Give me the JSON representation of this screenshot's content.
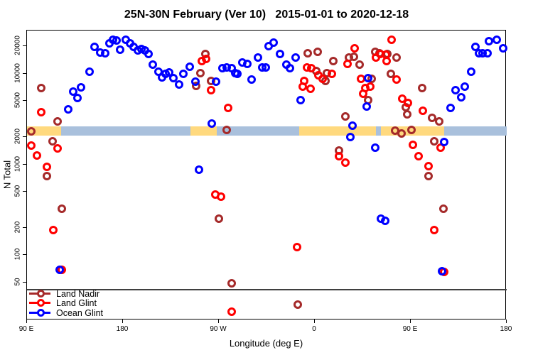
{
  "title": "25N-30N February (Ver 10)   2015-01-01 to 2020-12-18",
  "chart_data": {
    "type": "scatter",
    "title": "25N-30N February (Ver 10)   2015-01-01 to 2020-12-18",
    "xlabel": "Longitude (deg E)",
    "ylabel": "N Total",
    "x_axis": {
      "wraps": true,
      "span_deg": 450,
      "start_longitude": "90 E",
      "tick_positions_deg": [
        0,
        90,
        180,
        270,
        360,
        450
      ],
      "tick_labels": [
        "90 E",
        "180",
        "90 W",
        "0",
        "90 E",
        "180"
      ],
      "grid": false
    },
    "y_axis": {
      "scale": "log",
      "range": [
        19.2,
        29850
      ],
      "tick_values": [
        50,
        100,
        200,
        500,
        1000,
        2000,
        5000,
        10000,
        20000
      ],
      "tick_labels": [
        "50",
        "100",
        "200",
        "500",
        "1000",
        "2000",
        "5000",
        "10000",
        "20000"
      ],
      "grid": false
    },
    "reference_line": {
      "n": 42,
      "color": "#3f3f3f"
    },
    "map_band": {
      "description": "land/ocean world strip at 25N-30N latitude",
      "n_top": 2620,
      "n_bottom": 2070,
      "ocean_color": "#a9c0dc",
      "land_color": "#ffd97e",
      "land_segments_deg": [
        [
          0,
          32
        ],
        [
          153.3,
          178
        ],
        [
          255.3,
          327.3
        ],
        [
          332,
          391.3
        ]
      ]
    },
    "legend": {
      "position": "bottom-left",
      "entries": [
        "Land Nadir",
        "Land Glint",
        "Ocean Glint"
      ]
    },
    "series": [
      {
        "name": "Land Nadir",
        "color": "#a52a2a",
        "points": [
          [
            13.3,
            6930
          ],
          [
            28.7,
            2970
          ],
          [
            4,
            2310
          ],
          [
            24,
            1800
          ],
          [
            18.7,
            743
          ],
          [
            32.7,
            324
          ],
          [
            167.3,
            16400
          ],
          [
            162.7,
            10200
          ],
          [
            158.7,
            7300
          ],
          [
            172.7,
            8330
          ],
          [
            187.3,
            2400
          ],
          [
            180,
            252
          ],
          [
            192,
            49
          ],
          [
            254,
            28.5
          ],
          [
            263.3,
            16700
          ],
          [
            272.7,
            17400
          ],
          [
            287.3,
            13800
          ],
          [
            302,
            15100
          ],
          [
            306.7,
            15400
          ],
          [
            312,
            12600
          ],
          [
            326.7,
            17400
          ],
          [
            330.7,
            16700
          ],
          [
            338,
            16400
          ],
          [
            281.3,
            10200
          ],
          [
            271.3,
            10700
          ],
          [
            280,
            8330
          ],
          [
            323.3,
            8810
          ],
          [
            320,
            5100
          ],
          [
            298.7,
            3350
          ],
          [
            341.3,
            9860
          ],
          [
            292.7,
            1420
          ],
          [
            346.7,
            15100
          ],
          [
            370.7,
            6900
          ],
          [
            355.3,
            4300
          ],
          [
            356.7,
            3580
          ],
          [
            386.7,
            2970
          ],
          [
            380,
            3240
          ],
          [
            345.3,
            2360
          ],
          [
            351.3,
            2190
          ],
          [
            360.7,
            2400
          ],
          [
            382,
            1800
          ],
          [
            376.7,
            743
          ],
          [
            390.7,
            324
          ]
        ]
      },
      {
        "name": "Land Glint",
        "color": "#ff0000",
        "points": [
          [
            13.3,
            3760
          ],
          [
            4,
            1610
          ],
          [
            9.3,
            1250
          ],
          [
            28.7,
            1500
          ],
          [
            18.7,
            940
          ],
          [
            24.7,
            189
          ],
          [
            32.7,
            69
          ],
          [
            164,
            13800
          ],
          [
            168,
            14600
          ],
          [
            172.7,
            6570
          ],
          [
            188.7,
            4190
          ],
          [
            176.7,
            465
          ],
          [
            182,
            440
          ],
          [
            192,
            24
          ],
          [
            307.3,
            19000
          ],
          [
            300.7,
            12700
          ],
          [
            262.7,
            11600
          ],
          [
            266.7,
            11400
          ],
          [
            273.3,
            9680
          ],
          [
            277.3,
            8810
          ],
          [
            286,
            9860
          ],
          [
            260,
            8330
          ],
          [
            258.7,
            7160
          ],
          [
            266,
            6780
          ],
          [
            313.3,
            8810
          ],
          [
            317.3,
            6900
          ],
          [
            322,
            7160
          ],
          [
            315.3,
            5960
          ],
          [
            327.3,
            15100
          ],
          [
            331.3,
            16500
          ],
          [
            336.7,
            16200
          ],
          [
            337.3,
            13800
          ],
          [
            342,
            23600
          ],
          [
            292.7,
            1230
          ],
          [
            298.7,
            1050
          ],
          [
            346.7,
            8660
          ],
          [
            352,
            5280
          ],
          [
            357.3,
            4720
          ],
          [
            371.3,
            3900
          ],
          [
            362,
            1640
          ],
          [
            388,
            1530
          ],
          [
            367.3,
            1230
          ],
          [
            376.7,
            955
          ],
          [
            382,
            189
          ],
          [
            391.3,
            65
          ],
          [
            253.3,
            122
          ]
        ]
      },
      {
        "name": "Ocean Glint",
        "color": "#0000ff",
        "points": [
          [
            38.7,
            4040
          ],
          [
            43.3,
            6340
          ],
          [
            47.3,
            5400
          ],
          [
            50.7,
            7060
          ],
          [
            58.7,
            10500
          ],
          [
            63.3,
            19700
          ],
          [
            68.7,
            17100
          ],
          [
            73.3,
            16700
          ],
          [
            77.3,
            21600
          ],
          [
            80.7,
            23600
          ],
          [
            84,
            23200
          ],
          [
            87.3,
            18400
          ],
          [
            92.7,
            23600
          ],
          [
            96.7,
            21600
          ],
          [
            100,
            19700
          ],
          [
            104,
            18000
          ],
          [
            107.3,
            18700
          ],
          [
            110.7,
            18000
          ],
          [
            114,
            16400
          ],
          [
            118,
            12600
          ],
          [
            123.3,
            10500
          ],
          [
            126.7,
            9150
          ],
          [
            130,
            9860
          ],
          [
            133.3,
            10300
          ],
          [
            137.3,
            8970
          ],
          [
            142.7,
            7590
          ],
          [
            146.7,
            10000
          ],
          [
            152.7,
            11900
          ],
          [
            158,
            8150
          ],
          [
            173.3,
            2830
          ],
          [
            177.3,
            8150
          ],
          [
            183.3,
            11400
          ],
          [
            187.3,
            11600
          ],
          [
            192,
            11400
          ],
          [
            195.3,
            10200
          ],
          [
            197.3,
            9860
          ],
          [
            202,
            13300
          ],
          [
            206.7,
            12700
          ],
          [
            210.7,
            8660
          ],
          [
            216.7,
            15100
          ],
          [
            220.7,
            11600
          ],
          [
            224,
            11600
          ],
          [
            226.7,
            20100
          ],
          [
            231.3,
            22000
          ],
          [
            237.3,
            16400
          ],
          [
            243.3,
            12600
          ],
          [
            246.7,
            11400
          ],
          [
            252,
            15100
          ],
          [
            256.7,
            5110
          ],
          [
            161.3,
            873
          ],
          [
            303.3,
            1990
          ],
          [
            305.3,
            2690
          ],
          [
            318.7,
            4350
          ],
          [
            320,
            8970
          ],
          [
            326.7,
            1530
          ],
          [
            332,
            252
          ],
          [
            336,
            239
          ],
          [
            391.3,
            1760
          ],
          [
            397.3,
            4190
          ],
          [
            402,
            6570
          ],
          [
            407.3,
            5490
          ],
          [
            410.7,
            7160
          ],
          [
            416.7,
            10500
          ],
          [
            420.7,
            19700
          ],
          [
            424,
            16700
          ],
          [
            427.3,
            16700
          ],
          [
            432,
            16700
          ],
          [
            433.3,
            22800
          ],
          [
            440.7,
            23600
          ],
          [
            446.7,
            19000
          ],
          [
            30.7,
            69
          ],
          [
            389.3,
            67
          ]
        ]
      }
    ]
  }
}
